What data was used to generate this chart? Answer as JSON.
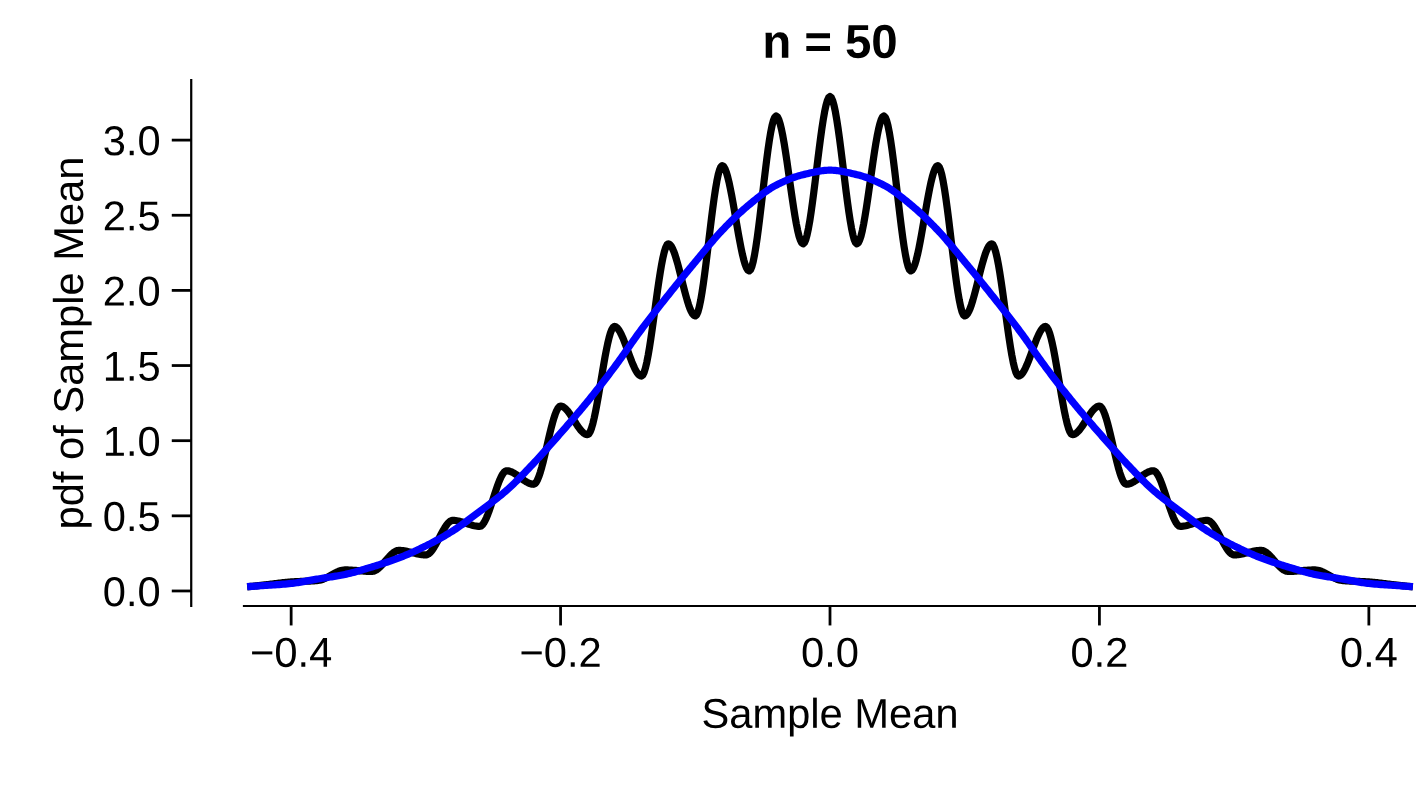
{
  "chart_data": {
    "type": "line",
    "title": "n = 50",
    "xlabel": "Sample Mean",
    "ylabel": "pdf of Sample Mean",
    "xlim": [
      -0.435,
      0.435
    ],
    "ylim": [
      -0.1,
      3.4
    ],
    "xticks": [
      {
        "value": -0.4,
        "label": "−0.4"
      },
      {
        "value": -0.2,
        "label": "−0.2"
      },
      {
        "value": 0.0,
        "label": "0.0"
      },
      {
        "value": 0.2,
        "label": "0.2"
      },
      {
        "value": 0.4,
        "label": "0.4"
      }
    ],
    "yticks": [
      {
        "value": 0.0,
        "label": "0.0"
      },
      {
        "value": 0.5,
        "label": "0.5"
      },
      {
        "value": 1.0,
        "label": "1.0"
      },
      {
        "value": 1.5,
        "label": "1.5"
      },
      {
        "value": 2.0,
        "label": "2.0"
      },
      {
        "value": 2.5,
        "label": "2.5"
      },
      {
        "value": 3.0,
        "label": "3.0"
      }
    ],
    "grid": false,
    "legend": false,
    "marker": "none",
    "line_style": "solid",
    "series": [
      {
        "color": "#000000",
        "x": [
          -0.43,
          -0.42,
          -0.4,
          -0.38,
          -0.36,
          -0.34,
          -0.32,
          -0.3,
          -0.28,
          -0.26,
          -0.24,
          -0.22,
          -0.2,
          -0.18,
          -0.16,
          -0.14,
          -0.12,
          -0.1,
          -0.08,
          -0.06,
          -0.04,
          -0.02,
          0.0,
          0.02,
          0.04,
          0.06,
          0.08,
          0.1,
          0.12,
          0.14,
          0.16,
          0.18,
          0.2,
          0.22,
          0.24,
          0.26,
          0.28,
          0.3,
          0.32,
          0.34,
          0.36,
          0.38,
          0.4,
          0.42,
          0.43
        ],
        "values": [
          0.03,
          0.04,
          0.06,
          0.07,
          0.14,
          0.13,
          0.27,
          0.24,
          0.47,
          0.43,
          0.8,
          0.71,
          1.23,
          1.04,
          1.76,
          1.43,
          2.31,
          1.83,
          2.83,
          2.13,
          3.16,
          2.31,
          3.29,
          2.31,
          3.16,
          2.13,
          2.83,
          1.83,
          2.31,
          1.43,
          1.76,
          1.04,
          1.23,
          0.71,
          0.8,
          0.43,
          0.47,
          0.24,
          0.27,
          0.13,
          0.14,
          0.07,
          0.06,
          0.04,
          0.03
        ]
      },
      {
        "color": "#0000ff",
        "x": [
          -0.43,
          -0.4,
          -0.38,
          -0.36,
          -0.34,
          -0.32,
          -0.3,
          -0.28,
          -0.26,
          -0.24,
          -0.22,
          -0.2,
          -0.18,
          -0.16,
          -0.14,
          -0.12,
          -0.1,
          -0.08,
          -0.06,
          -0.04,
          -0.02,
          0.0,
          0.02,
          0.04,
          0.06,
          0.08,
          0.1,
          0.12,
          0.14,
          0.16,
          0.18,
          0.2,
          0.22,
          0.24,
          0.26,
          0.28,
          0.3,
          0.32,
          0.34,
          0.36,
          0.38,
          0.4,
          0.43
        ],
        "values": [
          0.03,
          0.05,
          0.08,
          0.11,
          0.16,
          0.22,
          0.3,
          0.4,
          0.53,
          0.67,
          0.85,
          1.05,
          1.26,
          1.49,
          1.74,
          1.97,
          2.19,
          2.4,
          2.57,
          2.7,
          2.77,
          2.8,
          2.77,
          2.7,
          2.57,
          2.4,
          2.19,
          1.97,
          1.74,
          1.49,
          1.26,
          1.05,
          0.85,
          0.67,
          0.53,
          0.4,
          0.3,
          0.22,
          0.16,
          0.11,
          0.08,
          0.05,
          0.03
        ]
      }
    ]
  }
}
